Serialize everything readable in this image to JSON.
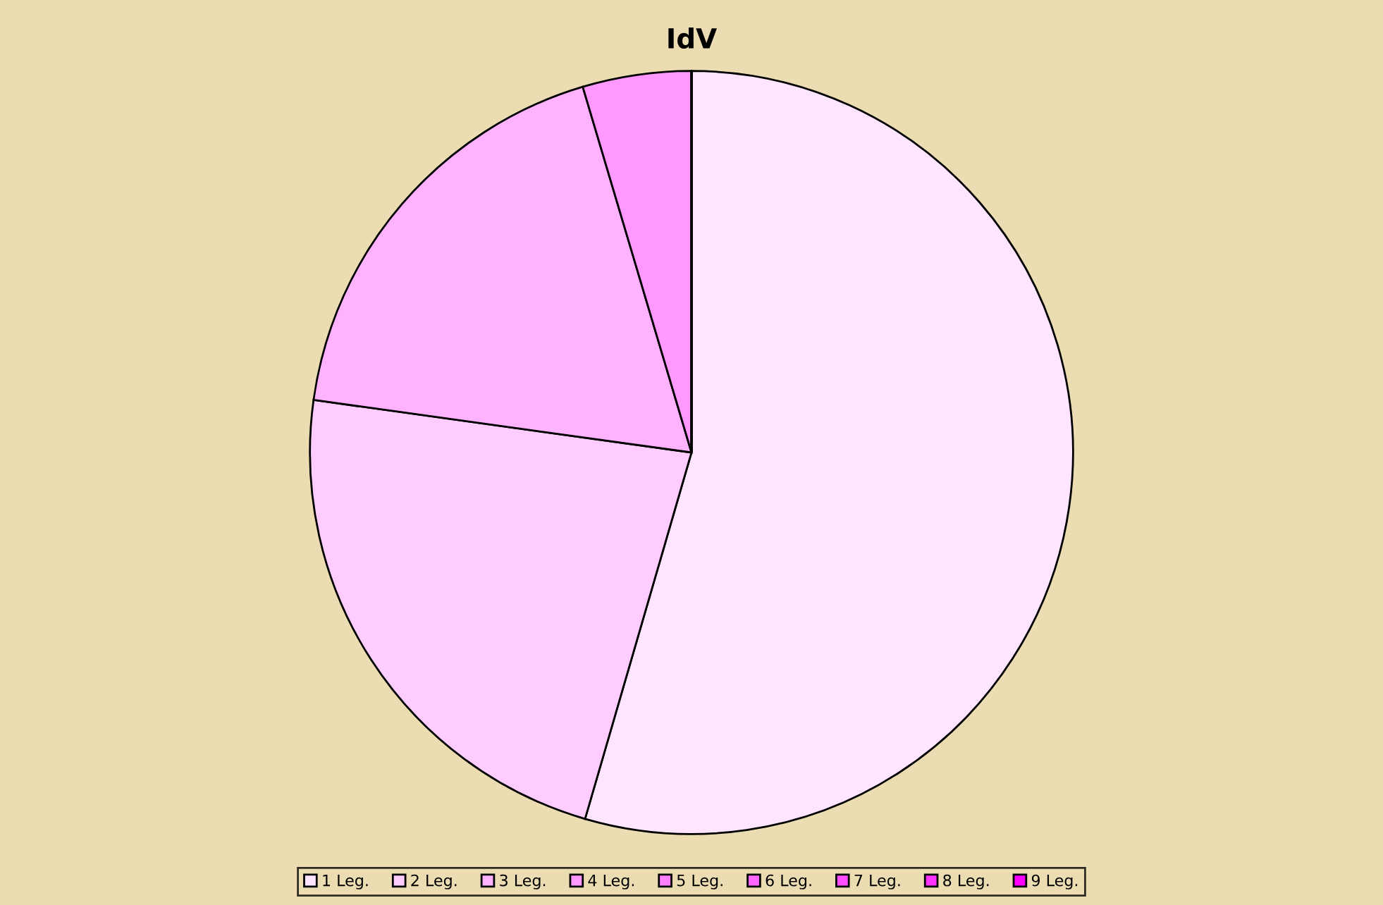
{
  "chart_data": {
    "type": "pie",
    "title": "IdV",
    "categories": [
      "1 Leg.",
      "2 Leg.",
      "3 Leg.",
      "4 Leg.",
      "5 Leg.",
      "6 Leg.",
      "7 Leg.",
      "8 Leg.",
      "9 Leg."
    ],
    "values": [
      54.5,
      22.7,
      18.2,
      4.6,
      0,
      0,
      0,
      0,
      0
    ],
    "colors": [
      "#ffe5ff",
      "#ffccff",
      "#ffb3ff",
      "#ff99ff",
      "#ff80ff",
      "#ff66ff",
      "#ff4dff",
      "#ff33ff",
      "#ff00ff"
    ],
    "legend": "bottom"
  }
}
